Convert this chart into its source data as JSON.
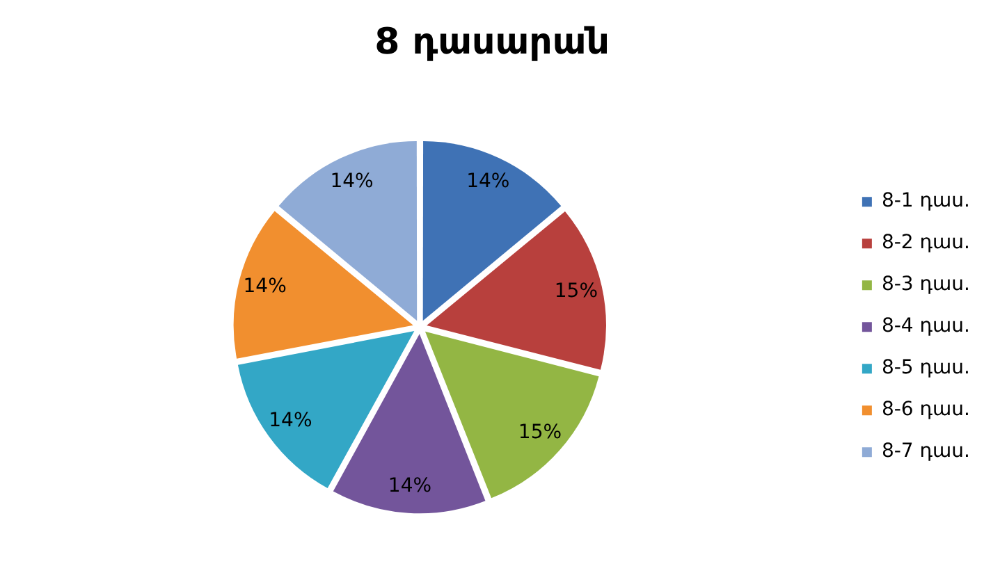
{
  "chart_data": {
    "type": "pie",
    "title": "8 դասարան",
    "categories": [
      "8-1 դաս.",
      "8-2 դաս.",
      "8-3 դաս.",
      "8-4 դաս.",
      "8-5 դաս.",
      "8-6 դաս.",
      "8-7 դաս."
    ],
    "values": [
      14,
      15,
      15,
      14,
      14,
      14,
      14
    ],
    "value_labels": [
      "14%",
      "15%",
      "15%",
      "14%",
      "14%",
      "14%",
      "14%"
    ],
    "colors": [
      "#3f72b5",
      "#b8403d",
      "#93b644",
      "#73559b",
      "#33a7c6",
      "#f18f2f",
      "#8fabd6"
    ],
    "legend": "right"
  }
}
